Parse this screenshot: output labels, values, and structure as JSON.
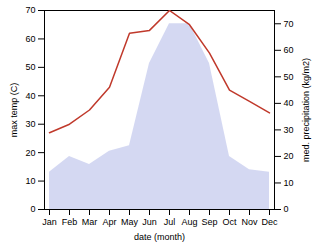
{
  "chart_data": {
    "type": "line",
    "xlabel": "date (month)",
    "ylabel": "max temp (C)",
    "y2label": "med. precipitation (kg/m2)",
    "categories": [
      "Jan",
      "Feb",
      "Mar",
      "Apr",
      "May",
      "Jun",
      "Jul",
      "Aug",
      "Sep",
      "Oct",
      "Nov",
      "Dec"
    ],
    "series": [
      {
        "type": "area",
        "axis": "y2",
        "color": "#b0b8e8",
        "values": [
          14,
          20,
          17,
          22,
          24,
          55,
          70,
          70,
          55,
          20,
          15,
          14
        ]
      },
      {
        "type": "line",
        "color": "#c0392b",
        "values": [
          27,
          30,
          35,
          43,
          62,
          63,
          70,
          65,
          55,
          42,
          38,
          34
        ]
      }
    ],
    "ylim": [
      0,
      70
    ],
    "yticks": [
      0,
      10,
      20,
      30,
      40,
      50,
      60,
      70
    ],
    "y2lim": [
      0,
      75
    ],
    "y2ticks": [
      0,
      10,
      20,
      30,
      40,
      50,
      60,
      70
    ],
    "grid": false
  }
}
